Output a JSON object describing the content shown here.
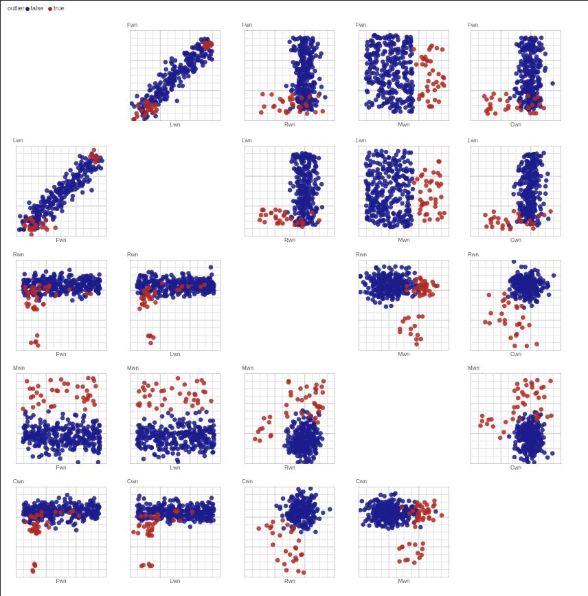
{
  "legend": {
    "title": "outlier",
    "items": [
      {
        "label": "false",
        "color": "#1c1c8c"
      },
      {
        "label": "true",
        "color": "#b22a22"
      }
    ]
  },
  "chart_data": {
    "type": "scatter",
    "kind": "scatterplot-matrix",
    "variables": [
      "Fwn",
      "Lwn",
      "Rwn",
      "Mwn",
      "Cwn"
    ],
    "grid": true,
    "legend_position": "top-left",
    "series": [
      {
        "name": "false",
        "color": "#1c1c8c"
      },
      {
        "name": "true",
        "color": "#b22a22"
      }
    ],
    "panels": [
      {
        "title": "Fwn",
        "xlabel": "Lwn",
        "pattern": "diag"
      },
      {
        "title": "Fwn",
        "xlabel": "Rwn",
        "pattern": "right_column"
      },
      {
        "title": "Fwn",
        "xlabel": "Mwn",
        "pattern": "left_mass"
      },
      {
        "title": "Fwn",
        "xlabel": "Cwn",
        "pattern": "right_column"
      },
      {
        "title": "Lwn",
        "xlabel": "Fwn",
        "pattern": "diag"
      },
      {
        "title": "Lwn",
        "xlabel": "Rwn",
        "pattern": "right_column"
      },
      {
        "title": "Lwn",
        "xlabel": "Mwn",
        "pattern": "left_mass"
      },
      {
        "title": "Lwn",
        "xlabel": "Cwn",
        "pattern": "right_column"
      },
      {
        "title": "Rwn",
        "xlabel": "Fwn",
        "pattern": "top_band"
      },
      {
        "title": "Rwn",
        "xlabel": "Lwn",
        "pattern": "top_band"
      },
      {
        "title": "Rwn",
        "xlabel": "Mwn",
        "pattern": "left_blob"
      },
      {
        "title": "Rwn",
        "xlabel": "Cwn",
        "pattern": "top_right_blob"
      },
      {
        "title": "Mwn",
        "xlabel": "Fwn",
        "pattern": "bottom_band"
      },
      {
        "title": "Mwn",
        "xlabel": "Lwn",
        "pattern": "bottom_band"
      },
      {
        "title": "Mwn",
        "xlabel": "Rwn",
        "pattern": "bottom_right"
      },
      {
        "title": "Mwn",
        "xlabel": "Cwn",
        "pattern": "bottom_right"
      },
      {
        "title": "Cwn",
        "xlabel": "Fwn",
        "pattern": "top_band"
      },
      {
        "title": "Cwn",
        "xlabel": "Lwn",
        "pattern": "top_band"
      },
      {
        "title": "Cwn",
        "xlabel": "Rwn",
        "pattern": "top_right_blob"
      },
      {
        "title": "Cwn",
        "xlabel": "Mwn",
        "pattern": "left_blob"
      }
    ]
  }
}
